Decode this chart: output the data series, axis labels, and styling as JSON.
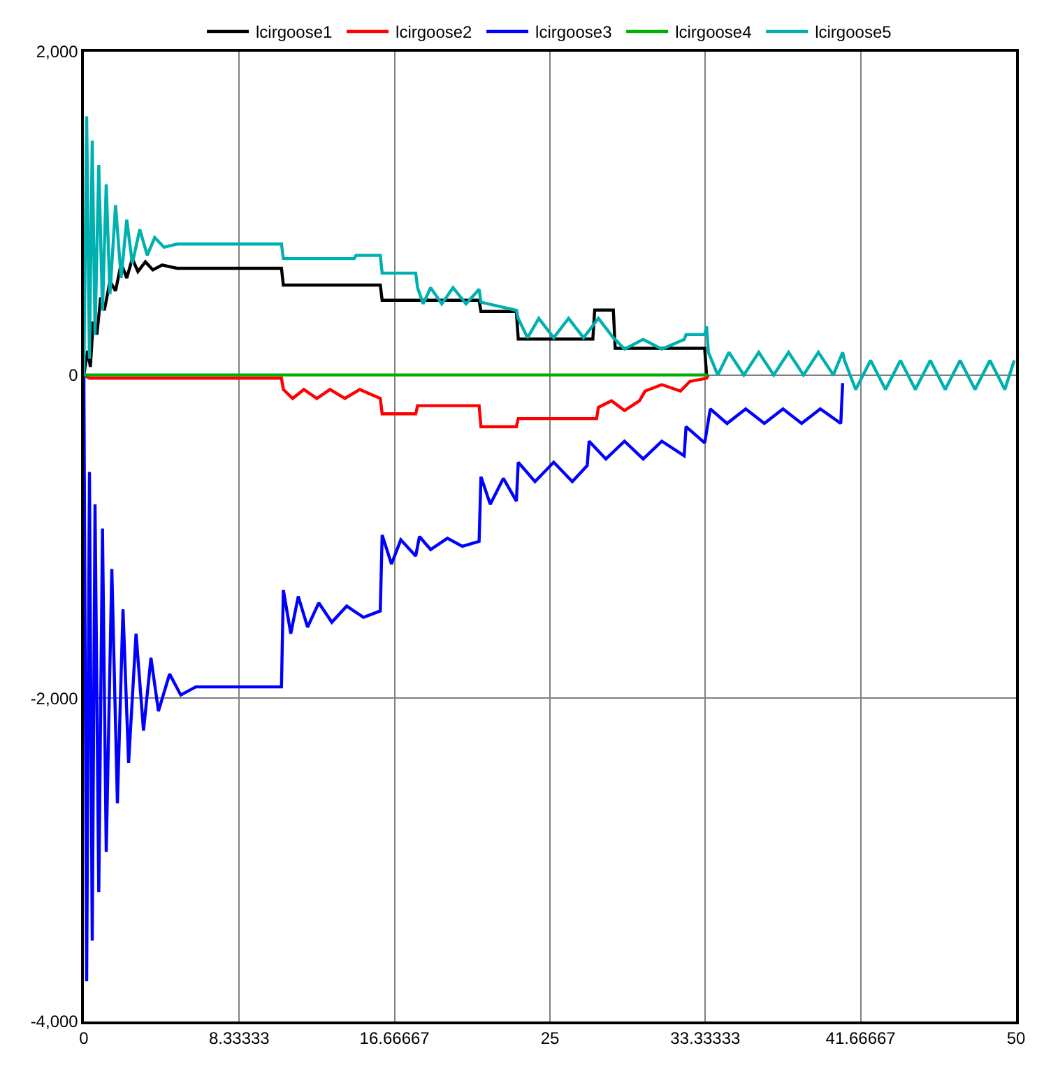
{
  "chart_data": {
    "type": "line",
    "xlim": [
      0,
      50
    ],
    "xticks": [
      0,
      8.33333,
      16.66667,
      25,
      33.33333,
      41.66667,
      50
    ],
    "ylim": [
      -4000,
      2000
    ],
    "yticks": [
      {
        "value": 2000,
        "label": "2,000"
      },
      0,
      {
        "value": -2000,
        "label": "-2,000"
      },
      {
        "value": -4000,
        "label": "-4,000"
      }
    ],
    "grid": true,
    "legend": "top",
    "marker": "none",
    "line_style": "solid",
    "series": [
      {
        "name": "lcirgoose1",
        "color": "#000000",
        "x": [
          0,
          0.2,
          0.35,
          0.5,
          0.7,
          0.9,
          1.1,
          1.4,
          1.7,
          2.0,
          2.3,
          2.6,
          2.9,
          3.3,
          3.7,
          4.2,
          5,
          10.6,
          10.7,
          15.9,
          16,
          21.2,
          21.3,
          23.2,
          23.3,
          27.3,
          27.4,
          28.4,
          28.5,
          33.3,
          33.4
        ],
        "values": [
          0,
          150,
          50,
          330,
          250,
          480,
          400,
          580,
          520,
          690,
          600,
          720,
          640,
          700,
          650,
          680,
          660,
          660,
          556,
          556,
          462,
          462,
          393,
          393,
          222,
          222,
          402,
          402,
          165,
          165,
          0
        ]
      },
      {
        "name": "lcirgoose2",
        "color": "#ff0000",
        "x": [
          0,
          0.3,
          10.6,
          10.7,
          11.2,
          11.8,
          12.5,
          13.2,
          14,
          14.8,
          15.9,
          16,
          17.8,
          17.9,
          21.2,
          21.3,
          23.2,
          23.3,
          27.5,
          27.6,
          28.3,
          29,
          29.8,
          30.1,
          31,
          32,
          32.5,
          33.4,
          33.5
        ],
        "values": [
          0,
          -20,
          -20,
          -90,
          -145,
          -90,
          -145,
          -90,
          -145,
          -90,
          -145,
          -240,
          -240,
          -190,
          -190,
          -320,
          -320,
          -270,
          -270,
          -200,
          -160,
          -220,
          -160,
          -100,
          -60,
          -100,
          -40,
          -20,
          0
        ]
      },
      {
        "name": "lcirgoose3",
        "color": "#0000ff",
        "x": [
          0,
          0.15,
          0.3,
          0.45,
          0.6,
          0.8,
          1.0,
          1.2,
          1.5,
          1.8,
          2.1,
          2.4,
          2.8,
          3.2,
          3.6,
          4.0,
          4.6,
          5.2,
          6,
          10.6,
          10.7,
          11.1,
          11.5,
          12,
          12.6,
          13.3,
          14.1,
          15,
          15.9,
          16,
          16.5,
          17,
          17.8,
          18,
          18.6,
          19.5,
          20.3,
          21.2,
          21.3,
          21.8,
          22.5,
          23.2,
          23.3,
          24.2,
          25.2,
          26.2,
          27,
          27.1,
          28,
          29,
          30,
          31,
          32.2,
          32.3,
          33.3,
          33.6,
          34.5,
          35.5,
          36.5,
          37.5,
          38.5,
          39.5,
          40.6,
          40.7
        ],
        "values": [
          0,
          -3750,
          -600,
          -3500,
          -800,
          -3200,
          -950,
          -2950,
          -1200,
          -2650,
          -1450,
          -2400,
          -1600,
          -2200,
          -1750,
          -2080,
          -1850,
          -1980,
          -1930,
          -1930,
          -1330,
          -1600,
          -1370,
          -1560,
          -1410,
          -1530,
          -1430,
          -1500,
          -1460,
          -990,
          -1170,
          -1020,
          -1120,
          -1000,
          -1080,
          -1010,
          -1060,
          -1030,
          -630,
          -800,
          -640,
          -780,
          -540,
          -660,
          -540,
          -660,
          -560,
          -410,
          -520,
          -410,
          -520,
          -410,
          -500,
          -320,
          -420,
          -210,
          -300,
          -210,
          -300,
          -210,
          -300,
          -210,
          -300,
          -50
        ]
      },
      {
        "name": "lcirgoose4",
        "color": "#00b000",
        "x": [
          0,
          33.5
        ],
        "values": [
          0,
          0
        ]
      },
      {
        "name": "lcirgoose5",
        "color": "#00b0b0",
        "x": [
          0,
          0.15,
          0.3,
          0.45,
          0.6,
          0.8,
          1.0,
          1.2,
          1.4,
          1.7,
          2.0,
          2.3,
          2.6,
          3.0,
          3.4,
          3.8,
          4.3,
          5,
          10.6,
          10.7,
          14.5,
          14.6,
          15.9,
          16,
          17.8,
          17.9,
          18.2,
          18.6,
          19.2,
          19.8,
          20.5,
          21.2,
          21.3,
          23.2,
          23.3,
          23.8,
          24.4,
          25.2,
          26,
          26.8,
          27.6,
          28.4,
          28.5,
          29,
          30,
          31,
          32.2,
          32.3,
          33.3,
          33.4,
          33.5,
          34,
          34.6,
          35.4,
          36.2,
          37,
          37.8,
          38.6,
          39.4,
          40.2,
          40.7,
          40.8,
          41.4,
          42.2,
          43,
          43.8,
          44.6,
          45.4,
          46.2,
          47,
          47.8,
          48.6,
          49.4,
          49.9
        ],
        "values": [
          0,
          1600,
          100,
          1450,
          250,
          1300,
          400,
          1180,
          500,
          1050,
          600,
          960,
          690,
          900,
          740,
          850,
          790,
          810,
          810,
          720,
          720,
          740,
          740,
          630,
          630,
          540,
          440,
          540,
          440,
          540,
          440,
          530,
          450,
          400,
          350,
          230,
          350,
          230,
          350,
          230,
          350,
          230,
          220,
          160,
          220,
          160,
          220,
          250,
          250,
          300,
          140,
          0,
          140,
          0,
          140,
          0,
          140,
          0,
          140,
          0,
          140,
          90,
          -90,
          90,
          -90,
          90,
          -90,
          90,
          -90,
          90,
          -90,
          90,
          -90,
          90
        ]
      }
    ]
  }
}
